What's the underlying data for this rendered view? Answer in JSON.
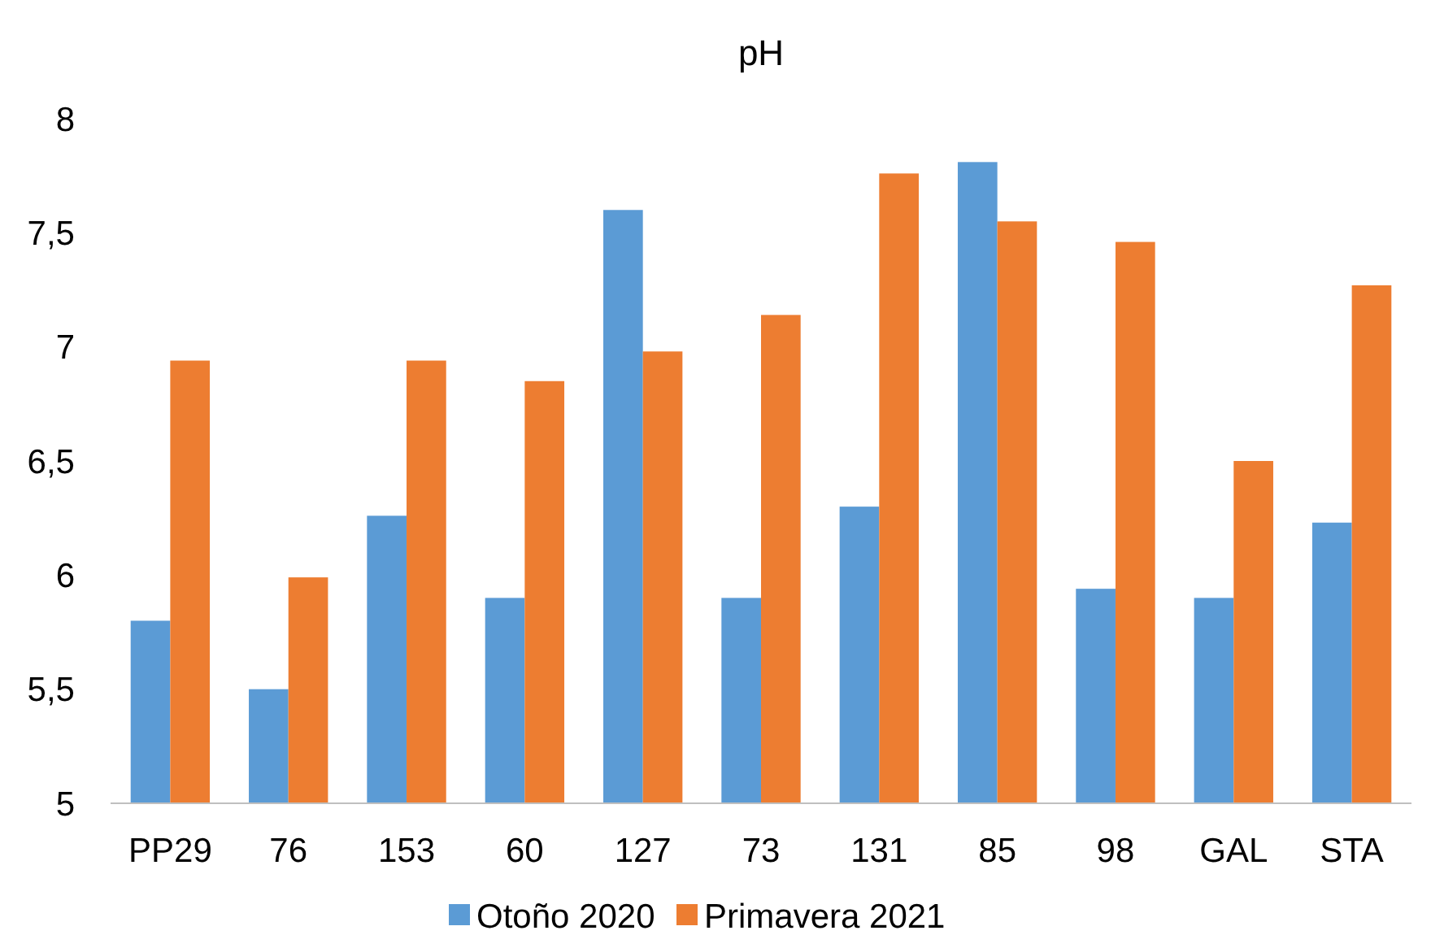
{
  "chart_data": {
    "type": "bar",
    "title": "pH",
    "categories": [
      "PP29",
      "76",
      "153",
      "60",
      "127",
      "73",
      "131",
      "85",
      "98",
      "GAL",
      "STA"
    ],
    "series": [
      {
        "name": "Otoño 2020",
        "color": "#5b9bd5",
        "values": [
          5.8,
          5.5,
          6.26,
          5.9,
          7.6,
          5.9,
          6.3,
          7.81,
          5.94,
          5.9,
          6.23
        ]
      },
      {
        "name": "Primavera 2021",
        "color": "#ed7d31",
        "values": [
          6.94,
          5.99,
          6.94,
          6.85,
          6.98,
          7.14,
          7.76,
          7.55,
          7.46,
          6.5,
          7.27
        ]
      }
    ],
    "ylim": [
      5,
      8
    ],
    "yticks": [
      5,
      {
        "value": 5.5,
        "label": "5,5"
      },
      6,
      {
        "value": 6.5,
        "label": "6,5"
      },
      7,
      {
        "value": 7.5,
        "label": "7,5"
      },
      8
    ],
    "grid": false,
    "legend": "bottom"
  }
}
